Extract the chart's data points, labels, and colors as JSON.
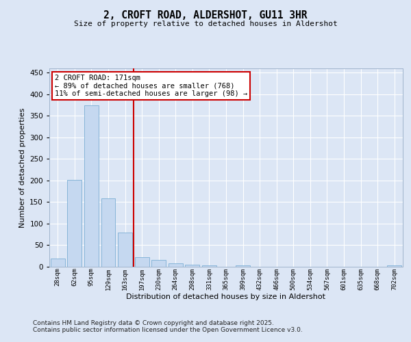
{
  "title": "2, CROFT ROAD, ALDERSHOT, GU11 3HR",
  "subtitle": "Size of property relative to detached houses in Aldershot",
  "xlabel": "Distribution of detached houses by size in Aldershot",
  "ylabel": "Number of detached properties",
  "bar_labels": [
    "28sqm",
    "62sqm",
    "95sqm",
    "129sqm",
    "163sqm",
    "197sqm",
    "230sqm",
    "264sqm",
    "298sqm",
    "331sqm",
    "365sqm",
    "399sqm",
    "432sqm",
    "466sqm",
    "500sqm",
    "534sqm",
    "567sqm",
    "601sqm",
    "635sqm",
    "668sqm",
    "702sqm"
  ],
  "bar_values": [
    19,
    201,
    374,
    158,
    80,
    23,
    16,
    8,
    5,
    3,
    0,
    3,
    0,
    0,
    0,
    0,
    0,
    0,
    0,
    0,
    3
  ],
  "bar_color": "#c5d8f0",
  "bar_edgecolor": "#7aaed4",
  "vline_x": 4.5,
  "vline_color": "#cc0000",
  "annotation_text": "2 CROFT ROAD: 171sqm\n← 89% of detached houses are smaller (768)\n11% of semi-detached houses are larger (98) →",
  "annotation_box_color": "#ffffff",
  "annotation_box_edgecolor": "#cc0000",
  "ylim": [
    0,
    460
  ],
  "yticks": [
    0,
    50,
    100,
    150,
    200,
    250,
    300,
    350,
    400,
    450
  ],
  "bg_color": "#dce6f5",
  "plot_bg_color": "#dce6f5",
  "grid_color": "#ffffff",
  "footer_line1": "Contains HM Land Registry data © Crown copyright and database right 2025.",
  "footer_line2": "Contains public sector information licensed under the Open Government Licence v3.0."
}
